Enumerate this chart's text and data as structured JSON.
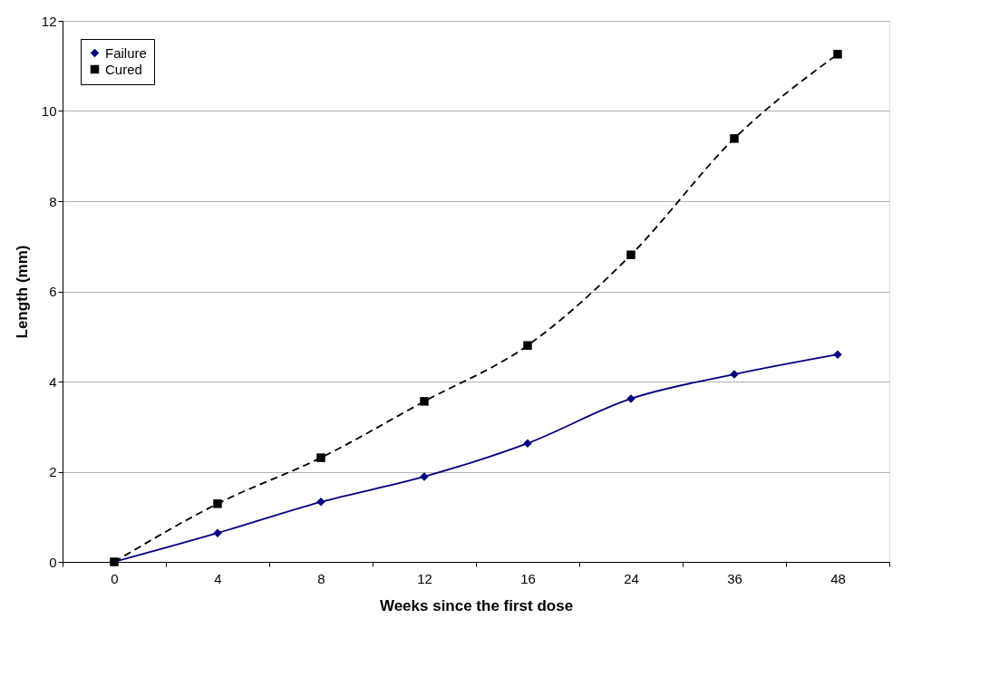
{
  "chart_data": {
    "type": "line",
    "xlabel": "Weeks since the first dose",
    "ylabel": "Length (mm)",
    "categories": [
      "0",
      "4",
      "8",
      "12",
      "16",
      "24",
      "36",
      "48"
    ],
    "series": [
      {
        "name": "Failure",
        "color": "#000080",
        "marker": "diamond",
        "line_style": "solid",
        "values": [
          0,
          0.64,
          1.33,
          1.89,
          2.63,
          3.62,
          4.16,
          4.6
        ]
      },
      {
        "name": "Cured",
        "color": "#000000",
        "marker": "square",
        "line_style": "dashed",
        "values": [
          0,
          1.29,
          2.31,
          3.56,
          4.8,
          6.81,
          9.39,
          11.26
        ]
      }
    ],
    "ylim": [
      0,
      12
    ],
    "yticks": [
      0,
      2,
      4,
      6,
      8,
      10,
      12
    ],
    "grid": "y",
    "legend": "top left"
  }
}
